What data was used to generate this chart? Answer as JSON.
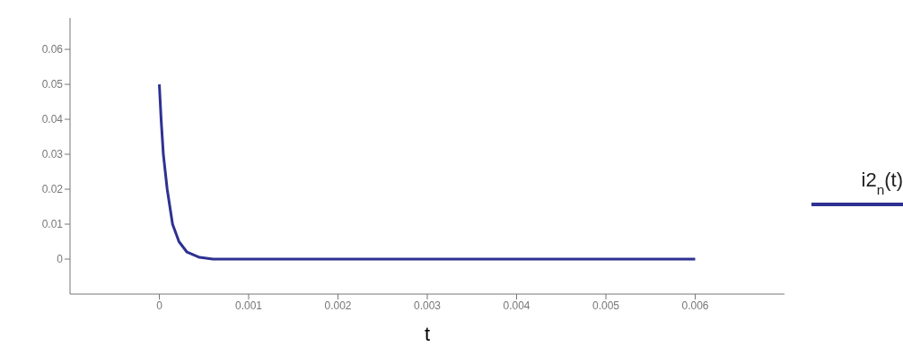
{
  "chart_data": {
    "type": "line",
    "xlabel": "t",
    "series": [
      {
        "name": "i2$_{n}$(t)",
        "color": "#2e3192",
        "x": [
          0,
          2e-05,
          4.5e-05,
          8.8e-05,
          0.000148,
          0.00022,
          0.00031,
          0.00045,
          0.0006,
          0.001,
          0.002,
          0.003,
          0.004,
          0.005,
          0.006
        ],
        "values": [
          0.05,
          0.04,
          0.03,
          0.02,
          0.01,
          0.005,
          0.002,
          0.0005,
          0,
          0,
          0,
          0,
          0,
          0,
          0
        ]
      }
    ],
    "xlim": [
      -0.001,
      0.007
    ],
    "xticks": [
      0,
      0.001,
      0.002,
      0.003,
      0.004,
      0.005,
      0.006
    ],
    "ylim": [
      -0.01,
      0.069
    ],
    "yticks": [
      0,
      0.01,
      0.02,
      0.03,
      0.04,
      0.05,
      0.06
    ],
    "grid": false,
    "legend": "right",
    "marker": "none",
    "line_style": "solid"
  }
}
